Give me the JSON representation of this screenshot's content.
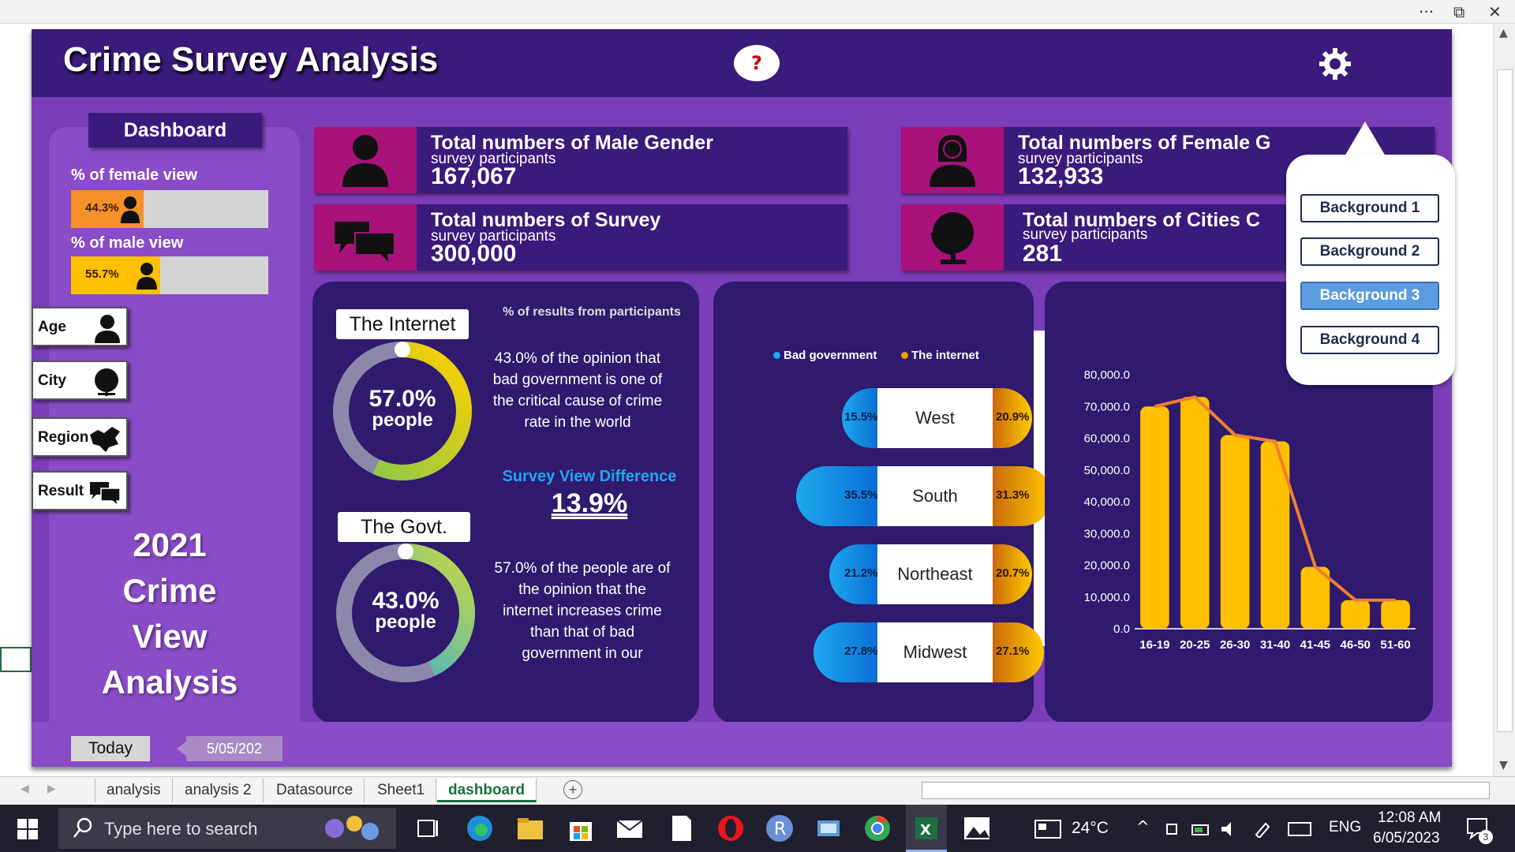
{
  "window": {
    "more": "···",
    "restore": "⧉",
    "close": "✕"
  },
  "header": {
    "title": "Crime Survey Analysis",
    "help": "?"
  },
  "left_panel": {
    "dashboard_label": "Dashboard",
    "female_view": {
      "title": "% of female view",
      "value_label": "44.3%",
      "value": 44.3,
      "color": "#f5902a"
    },
    "male_view": {
      "title": "% of male view",
      "value_label": "55.7%",
      "value": 55.7,
      "color": "#ffc000"
    },
    "slicers": [
      {
        "label": "Age",
        "icon": "person-icon"
      },
      {
        "label": "City",
        "icon": "globe-icon"
      },
      {
        "label": "Region",
        "icon": "map-icon"
      },
      {
        "label": "Result",
        "icon": "chat-icon"
      }
    ],
    "big_title": [
      "2021",
      "Crime",
      "View",
      "Analysis"
    ]
  },
  "kpis": {
    "male": {
      "title": "Total numbers of Male Gender",
      "sub": "survey participants",
      "value": "167,067"
    },
    "female": {
      "title": "Total numbers of Female G",
      "sub": "survey participants",
      "value": "132,933"
    },
    "survey": {
      "title": "Total numbers of Survey",
      "sub": "survey participants",
      "value": "300,000"
    },
    "cities": {
      "title": "Total numbers of Cities C",
      "sub": "survey participants",
      "value": "281"
    }
  },
  "results_panel": {
    "heading": "% of results from participants",
    "internet": {
      "label": "The Internet",
      "pct": "57.0%",
      "unit": "people",
      "value": 57.0
    },
    "govt": {
      "label": "The Govt.",
      "pct": "43.0%",
      "unit": "people",
      "value": 43.0
    },
    "text_govt": "43.0% of the opinion that bad government is one of the critical cause of crime rate in the world",
    "diff_title": "Survey View Difference",
    "diff_value": "13.9%",
    "text_internet": "57.0% of the people are of the opinion that the internet increases crime than that of bad government in our"
  },
  "region_panel": {
    "legend": [
      {
        "label": "Bad government",
        "color": "#1ea8f0"
      },
      {
        "label": "The internet",
        "color": "#f0a000"
      }
    ],
    "regions": [
      {
        "name": "West",
        "left": "15.5%",
        "left_v": 15.5,
        "right": "20.9%",
        "right_v": 20.9
      },
      {
        "name": "South",
        "left": "35.5%",
        "left_v": 35.5,
        "right": "31.3%",
        "right_v": 31.3
      },
      {
        "name": "Northeast",
        "left": "21.2%",
        "left_v": 21.2,
        "right": "20.7%",
        "right_v": 20.7
      },
      {
        "name": "Midwest",
        "left": "27.8%",
        "left_v": 27.8,
        "right": "27.1%",
        "right_v": 27.1
      }
    ]
  },
  "chart_data": {
    "type": "bar",
    "categories": [
      "16-19",
      "20-25",
      "26-30",
      "31-40",
      "41-45",
      "46-50",
      "51-60"
    ],
    "values": [
      70000,
      73000,
      61000,
      59000,
      19500,
      9000,
      9000
    ],
    "yticks": [
      "0.0",
      "10,000.0",
      "20,000.0",
      "30,000.0",
      "40,000.0",
      "50,000.0",
      "60,000.0",
      "70,000.0",
      "80,000.0"
    ],
    "ylim": [
      0,
      80000
    ],
    "bar_color": "#ffc000",
    "line_color": "#f08030",
    "title": "",
    "xlabel": "",
    "ylabel": ""
  },
  "background_menu": {
    "items": [
      {
        "label": "Background 1",
        "active": false
      },
      {
        "label": "Background 2",
        "active": false
      },
      {
        "label": "Background 3",
        "active": true
      },
      {
        "label": "Background 4",
        "active": false
      }
    ]
  },
  "footer": {
    "today": "Today",
    "date": "5/05/202"
  },
  "sheet_tabs": [
    {
      "label": "analysis",
      "active": false
    },
    {
      "label": "analysis 2",
      "active": false
    },
    {
      "label": "Datasource",
      "active": false
    },
    {
      "label": "Sheet1",
      "active": false
    },
    {
      "label": "dashboard",
      "active": true
    }
  ],
  "taskbar": {
    "search_placeholder": "Type here to search",
    "weather": "24°C",
    "language": "ENG",
    "time": "12:08 AM",
    "date": "6/05/2023",
    "notifications": "3"
  }
}
